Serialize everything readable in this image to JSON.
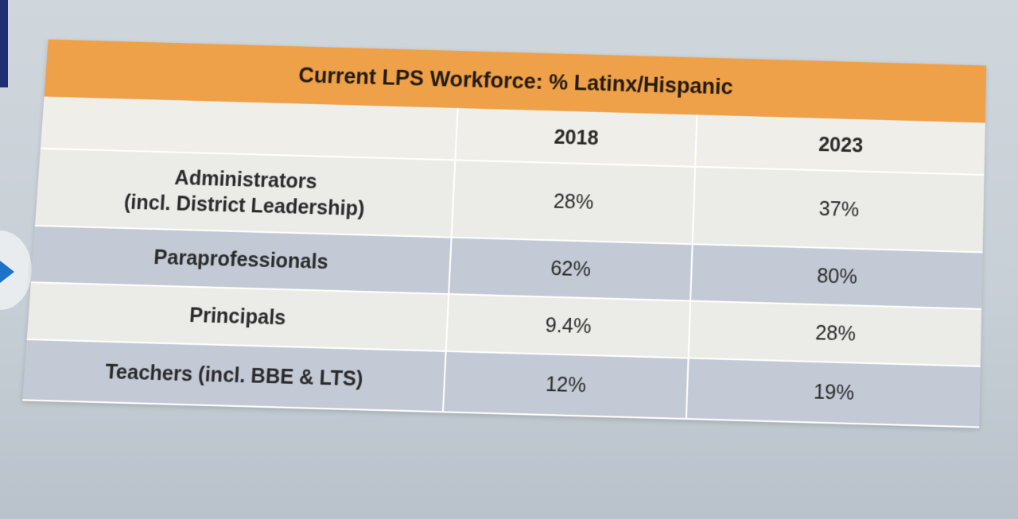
{
  "table": {
    "title": "Current LPS Workforce: % Latinx/Hispanic",
    "columns": [
      "",
      "2018",
      "2023"
    ],
    "rows": [
      {
        "label_line1": "Administrators",
        "label_line2": "(incl. District Leadership)",
        "v2018": "28%",
        "v2023": "37%"
      },
      {
        "label_line1": "Paraprofessionals",
        "label_line2": "",
        "v2018": "62%",
        "v2023": "80%"
      },
      {
        "label_line1": "Principals",
        "label_line2": "",
        "v2018": "9.4%",
        "v2023": "28%"
      },
      {
        "label_line1": "Teachers (incl. BBE & LTS)",
        "label_line2": "",
        "v2018": "12%",
        "v2023": "19%"
      }
    ]
  },
  "colors": {
    "title_bar": "#eea148",
    "row_dark": "#c3cad6",
    "row_light": "#ebebe7",
    "background": "#cfd6dc"
  }
}
